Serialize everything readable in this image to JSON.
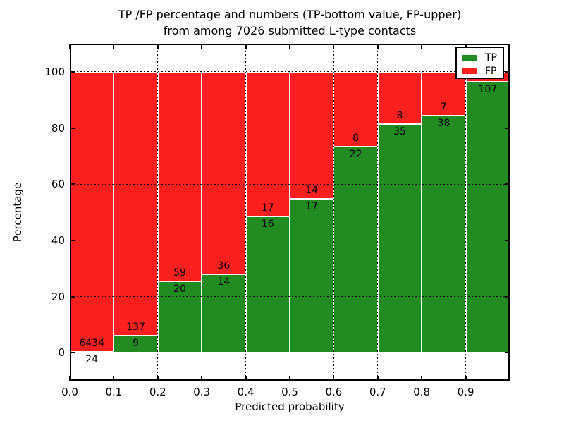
{
  "figure": {
    "title_line1": "TP /FP percentage and numbers (TP-bottom value, FP-upper)",
    "title_line2": "from among 7026 submitted L-type contacts",
    "xlabel": "Predicted probability",
    "ylabel": "Percentage"
  },
  "legend": {
    "items": [
      {
        "label": "TP",
        "color": "#228b22"
      },
      {
        "label": "FP",
        "color": "#fb1f1f"
      }
    ]
  },
  "chart_data": {
    "type": "bar",
    "subtype": "stacked-100-percent-histogram",
    "title": "TP /FP percentage and numbers (TP-bottom value, FP-upper) from among 7026 submitted L-type contacts",
    "xlabel": "Predicted probability",
    "ylabel": "Percentage",
    "total_submitted": 7026,
    "xlim": [
      0.0,
      1.0
    ],
    "ylim": [
      -10,
      110
    ],
    "bin_edges": [
      0.0,
      0.1,
      0.2,
      0.3,
      0.4,
      0.5,
      0.6,
      0.7,
      0.8,
      0.9,
      1.0
    ],
    "xtick_labels": [
      "0.0",
      "0.1",
      "0.2",
      "0.3",
      "0.4",
      "0.5",
      "0.6",
      "0.7",
      "0.8",
      "0.9"
    ],
    "ytick_values": [
      0,
      20,
      40,
      60,
      80,
      100
    ],
    "ytick_labels": [
      "0",
      "20",
      "40",
      "60",
      "80",
      "100"
    ],
    "grid": "dotted black, drawn on top of bars; white bar edges",
    "legend_position": "upper right",
    "series": [
      {
        "name": "TP",
        "color": "#228b22",
        "counts": [
          24,
          9,
          20,
          14,
          16,
          17,
          22,
          35,
          38,
          107
        ],
        "percent": [
          0.37,
          6.16,
          25.32,
          28.0,
          48.48,
          54.84,
          73.33,
          81.4,
          84.44,
          96.4
        ]
      },
      {
        "name": "FP",
        "color": "#fb1f1f",
        "counts": [
          6434,
          137,
          59,
          36,
          17,
          14,
          8,
          8,
          7,
          null
        ],
        "percent": [
          99.63,
          93.84,
          74.68,
          72.0,
          51.52,
          45.16,
          26.67,
          18.6,
          15.56,
          3.6
        ]
      }
    ],
    "bar_labels": {
      "tp": [
        "24",
        "9",
        "20",
        "14",
        "16",
        "17",
        "22",
        "35",
        "38",
        "107"
      ],
      "fp": [
        "6434",
        "137",
        "59",
        "36",
        "17",
        "14",
        "8",
        "8",
        "7",
        ""
      ]
    },
    "note": "FP count label of last bin is hidden behind the legend box"
  }
}
